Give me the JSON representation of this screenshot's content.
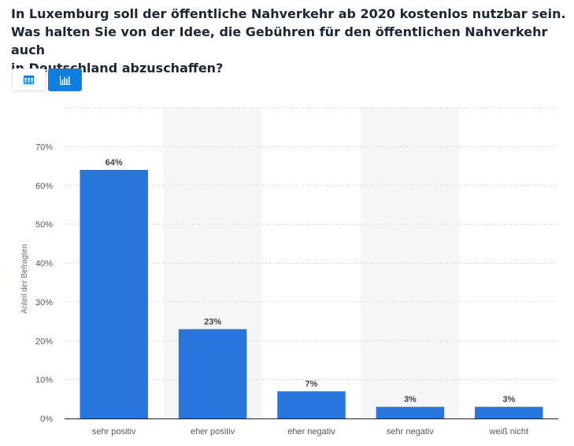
{
  "title_lines": [
    "In Luxemburg soll der öffentliche Nahverkehr ab 2020 kostenlos nutzbar sein.",
    "Was halten Sie von der Idee, die Gebühren für den öffentlichen Nahverkehr auch",
    "in Deutschland abzuschaffen?"
  ],
  "toolbar": {
    "table_icon": "table-icon",
    "chart_icon": "bar-chart-icon",
    "active": "chart"
  },
  "colors": {
    "bar": "#2876dd",
    "band": "#f6f6f6",
    "grid": "#c9ccd1",
    "axis": "#1f2328",
    "active_button": "#0d7fe0"
  },
  "chart_data": {
    "type": "bar",
    "categories": [
      "sehr positiv",
      "eher positiv",
      "eher negativ",
      "sehr negativ",
      "weiß nicht"
    ],
    "values": [
      64,
      23,
      7,
      3,
      3
    ],
    "data_labels": [
      "64%",
      "23%",
      "7%",
      "3%",
      "3%"
    ],
    "ylabel": "Anteil der Befragten",
    "ylim": [
      0,
      80
    ],
    "yticks": [
      0,
      10,
      20,
      30,
      40,
      50,
      60,
      70
    ],
    "ytick_labels": [
      "0%",
      "10%",
      "20%",
      "30%",
      "40%",
      "50%",
      "60%",
      "70%"
    ],
    "grid": true,
    "legend": "none"
  }
}
